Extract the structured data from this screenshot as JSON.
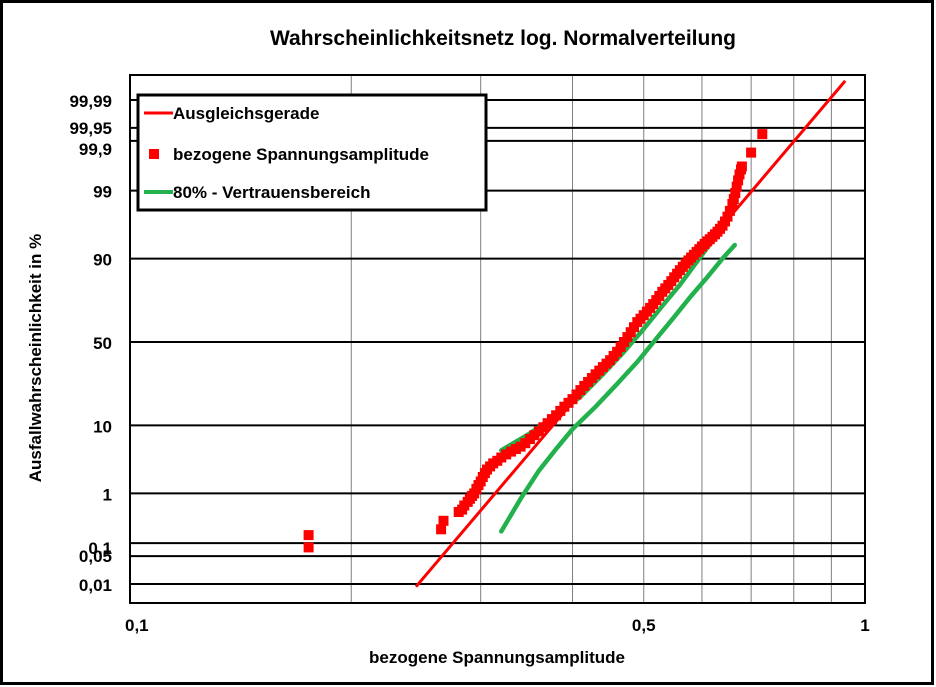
{
  "chart_data": {
    "type": "scatter",
    "title": "Wahrscheinlichkeitsnetz log. Normalverteilung",
    "xlabel": "bezogene Spannungsamplitude",
    "ylabel": "Ausfallwahrscheinlichkeit in %",
    "x_scale": "log",
    "y_scale": "normal-probability",
    "xlim": [
      0.1,
      1
    ],
    "x_tick_labels": [
      {
        "value": 0.1,
        "label": "0,1"
      },
      {
        "value": 0.5,
        "label": "0,5"
      },
      {
        "value": 1,
        "label": "1"
      }
    ],
    "x_gridlines": [
      0.2,
      0.3,
      0.4,
      0.5,
      0.6,
      0.7,
      0.8,
      0.9
    ],
    "y_ticks": [
      {
        "value": 0.01,
        "label": "0,01"
      },
      {
        "value": 0.05,
        "label": "0,05"
      },
      {
        "value": 0.1,
        "label": "0,1"
      },
      {
        "value": 1,
        "label": "1"
      },
      {
        "value": 10,
        "label": "10"
      },
      {
        "value": 50,
        "label": "50"
      },
      {
        "value": 90,
        "label": "90"
      },
      {
        "value": 99,
        "label": "99"
      },
      {
        "value": 99.9,
        "label": "99,9"
      },
      {
        "value": 99.95,
        "label": "99,95"
      },
      {
        "value": 99.99,
        "label": "99,99"
      }
    ],
    "grid": true,
    "legend_position": "top-left",
    "colors": {
      "fit": "#ff0000",
      "points": "#ff0000",
      "band": "#22b14c"
    },
    "series": [
      {
        "name": "Ausgleichsgerade",
        "kind": "line",
        "points": [
          [
            0.245,
            0.0085
          ],
          [
            0.94,
            99.997
          ]
        ]
      },
      {
        "name": "bezogene Spannungsamplitude",
        "kind": "scatter",
        "points": [
          [
            0.175,
            0.08
          ],
          [
            0.175,
            0.15
          ],
          [
            0.265,
            0.2
          ],
          [
            0.267,
            0.3
          ],
          [
            0.28,
            0.45
          ],
          [
            0.283,
            0.5
          ],
          [
            0.285,
            0.6
          ],
          [
            0.288,
            0.7
          ],
          [
            0.29,
            0.8
          ],
          [
            0.292,
            0.9
          ],
          [
            0.294,
            1.0
          ],
          [
            0.296,
            1.2
          ],
          [
            0.298,
            1.4
          ],
          [
            0.3,
            1.6
          ],
          [
            0.302,
            1.9
          ],
          [
            0.304,
            2.2
          ],
          [
            0.306,
            2.5
          ],
          [
            0.309,
            2.8
          ],
          [
            0.312,
            3.1
          ],
          [
            0.316,
            3.4
          ],
          [
            0.32,
            3.8
          ],
          [
            0.325,
            4.2
          ],
          [
            0.33,
            4.6
          ],
          [
            0.335,
            5.0
          ],
          [
            0.34,
            5.4
          ],
          [
            0.345,
            6.0
          ],
          [
            0.35,
            6.8
          ],
          [
            0.355,
            7.6
          ],
          [
            0.36,
            8.5
          ],
          [
            0.365,
            9.5
          ],
          [
            0.37,
            10.6
          ],
          [
            0.375,
            11.8
          ],
          [
            0.38,
            13
          ],
          [
            0.385,
            14.5
          ],
          [
            0.39,
            16
          ],
          [
            0.395,
            17.5
          ],
          [
            0.4,
            19
          ],
          [
            0.405,
            21
          ],
          [
            0.41,
            23
          ],
          [
            0.415,
            25
          ],
          [
            0.42,
            27
          ],
          [
            0.425,
            29
          ],
          [
            0.43,
            31
          ],
          [
            0.435,
            33
          ],
          [
            0.44,
            35
          ],
          [
            0.445,
            37
          ],
          [
            0.45,
            39
          ],
          [
            0.455,
            41.5
          ],
          [
            0.46,
            44
          ],
          [
            0.465,
            47
          ],
          [
            0.47,
            50
          ],
          [
            0.475,
            53
          ],
          [
            0.48,
            56
          ],
          [
            0.485,
            59
          ],
          [
            0.49,
            62
          ],
          [
            0.495,
            64
          ],
          [
            0.5,
            66
          ],
          [
            0.505,
            68
          ],
          [
            0.51,
            70
          ],
          [
            0.515,
            72
          ],
          [
            0.52,
            74
          ],
          [
            0.525,
            76
          ],
          [
            0.53,
            78
          ],
          [
            0.535,
            79.5
          ],
          [
            0.54,
            81
          ],
          [
            0.545,
            82.5
          ],
          [
            0.55,
            84
          ],
          [
            0.555,
            85.3
          ],
          [
            0.56,
            86.5
          ],
          [
            0.565,
            87.6
          ],
          [
            0.57,
            88.6
          ],
          [
            0.575,
            89.5
          ],
          [
            0.58,
            90.3
          ],
          [
            0.585,
            91
          ],
          [
            0.59,
            91.7
          ],
          [
            0.595,
            92.3
          ],
          [
            0.6,
            92.9
          ],
          [
            0.605,
            93.4
          ],
          [
            0.61,
            93.9
          ],
          [
            0.615,
            94.3
          ],
          [
            0.62,
            94.7
          ],
          [
            0.625,
            95.1
          ],
          [
            0.63,
            95.5
          ],
          [
            0.635,
            95.9
          ],
          [
            0.64,
            96.3
          ],
          [
            0.645,
            96.8
          ],
          [
            0.65,
            97.3
          ],
          [
            0.655,
            97.8
          ],
          [
            0.66,
            98.3
          ],
          [
            0.663,
            98.6
          ],
          [
            0.666,
            98.9
          ],
          [
            0.669,
            99.15
          ],
          [
            0.672,
            99.35
          ],
          [
            0.675,
            99.5
          ],
          [
            0.678,
            99.6
          ],
          [
            0.68,
            99.65
          ],
          [
            0.7,
            99.82
          ],
          [
            0.725,
            99.93
          ]
        ]
      },
      {
        "name": "80% - Vertrauensbereich",
        "kind": "band",
        "upper": [
          [
            0.32,
            4.8
          ],
          [
            0.35,
            8
          ],
          [
            0.38,
            13
          ],
          [
            0.41,
            20
          ],
          [
            0.44,
            31
          ],
          [
            0.47,
            44
          ],
          [
            0.5,
            58
          ],
          [
            0.53,
            71
          ],
          [
            0.56,
            81
          ],
          [
            0.59,
            89
          ],
          [
            0.62,
            94
          ],
          [
            0.645,
            97
          ],
          [
            0.665,
            98.5
          ]
        ],
        "lower": [
          [
            0.32,
            0.18
          ],
          [
            0.34,
            0.8
          ],
          [
            0.36,
            2.4
          ],
          [
            0.38,
            5
          ],
          [
            0.4,
            9
          ],
          [
            0.43,
            16
          ],
          [
            0.46,
            26
          ],
          [
            0.49,
            38
          ],
          [
            0.52,
            52
          ],
          [
            0.55,
            65
          ],
          [
            0.58,
            76
          ],
          [
            0.61,
            84
          ],
          [
            0.64,
            90
          ],
          [
            0.665,
            93.2
          ]
        ]
      }
    ]
  }
}
